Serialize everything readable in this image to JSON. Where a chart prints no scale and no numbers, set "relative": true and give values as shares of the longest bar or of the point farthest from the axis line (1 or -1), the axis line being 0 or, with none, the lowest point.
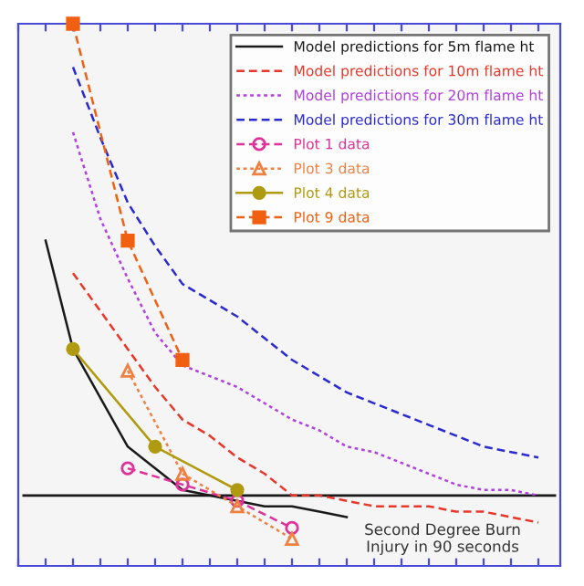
{
  "chart_data": {
    "type": "line",
    "relative": true,
    "legend": "top right",
    "grid": false,
    "categories": [
      null,
      null,
      null,
      null,
      null,
      null,
      null,
      null,
      null,
      null,
      null,
      null,
      null,
      null,
      null,
      null,
      null,
      null,
      null,
      null
    ],
    "series": [
      {
        "name": "Model predictions for 5m flame ht",
        "color": "#1a1a1a",
        "line_style": "solid",
        "marker": "none",
        "values": [
          null,
          0.6,
          0.4,
          0.31,
          0.22,
          0.18,
          0.14,
          0.13,
          0.12,
          0.11,
          0.11,
          0.1,
          0.09,
          null,
          null,
          null,
          null,
          null,
          null,
          null
        ]
      },
      {
        "name": "Model predictions for 10m flame ht",
        "color": "#e8372a",
        "line_style": "dashed",
        "marker": "none",
        "values": [
          null,
          null,
          0.54,
          0.47,
          0.4,
          0.33,
          0.27,
          0.24,
          0.2,
          0.17,
          0.13,
          0.13,
          0.12,
          0.11,
          0.11,
          0.11,
          0.1,
          0.1,
          0.09,
          0.08
        ]
      },
      {
        "name": "Model predictions for 20m flame ht",
        "color": "#b040e0",
        "line_style": "dotted",
        "marker": "none",
        "values": [
          null,
          null,
          0.8,
          0.64,
          0.53,
          0.43,
          0.37,
          0.35,
          0.33,
          0.3,
          0.27,
          0.25,
          0.22,
          0.21,
          0.19,
          0.17,
          0.15,
          0.14,
          0.14,
          0.13
        ]
      },
      {
        "name": "Model predictions for 30m flame ht",
        "color": "#2a2ad0",
        "line_style": "dashed",
        "marker": "none",
        "values": [
          null,
          null,
          0.92,
          0.79,
          0.67,
          0.59,
          0.52,
          0.49,
          0.46,
          0.42,
          0.38,
          0.35,
          0.32,
          0.3,
          0.28,
          0.26,
          0.24,
          0.22,
          0.21,
          0.2
        ]
      },
      {
        "name": "Plot 1 data",
        "color": "#e0309a",
        "line_style": "dashed",
        "marker": "circle",
        "values": [
          null,
          null,
          null,
          null,
          0.18,
          null,
          0.15,
          null,
          0.12,
          null,
          0.07,
          null,
          null,
          null,
          null,
          null,
          null,
          null,
          null,
          null
        ]
      },
      {
        "name": "Plot 3 data",
        "color": "#f08040",
        "line_style": "dotted",
        "marker": "triangle",
        "values": [
          null,
          null,
          null,
          null,
          0.36,
          null,
          0.17,
          null,
          0.11,
          null,
          0.05,
          null,
          null,
          null,
          null,
          null,
          null,
          null,
          null,
          null
        ]
      },
      {
        "name": "Plot 4 data",
        "color": "#b09a10",
        "line_style": "solid",
        "marker": "circle",
        "values": [
          null,
          null,
          0.4,
          null,
          null,
          0.22,
          null,
          null,
          0.14,
          null,
          null,
          null,
          null,
          null,
          null,
          null,
          null,
          null,
          null,
          null
        ]
      },
      {
        "name": "Plot 9 data",
        "color": "#f06010",
        "line_style": "dashed",
        "marker": "square",
        "values": [
          null,
          null,
          1.0,
          null,
          0.6,
          null,
          0.38,
          null,
          null,
          null,
          null,
          null,
          null,
          null,
          null,
          null,
          null,
          null,
          null,
          null
        ]
      }
    ],
    "ref_lines": [
      {
        "axis": "y",
        "value": 0.13,
        "label": "Second Degree Burn\nInjury in 90 seconds",
        "color": "#1a1a1a"
      }
    ]
  }
}
